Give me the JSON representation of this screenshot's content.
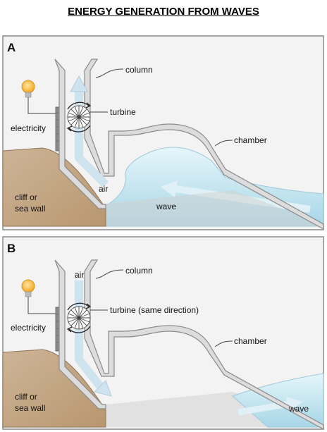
{
  "title": "ENERGY GENERATION FROM WAVES",
  "panel_a": {
    "letter": "A",
    "labels": {
      "column": "column",
      "turbine": "turbine",
      "electricity": "electricity",
      "chamber": "chamber",
      "air": "air",
      "wave": "wave",
      "cliff_line1": "cliff or",
      "cliff_line2": "sea wall"
    }
  },
  "panel_b": {
    "letter": "B",
    "labels": {
      "air": "air",
      "column": "column",
      "turbine": "turbine (same direction)",
      "electricity": "electricity",
      "chamber": "chamber",
      "wave": "wave",
      "cliff_line1": "cliff or",
      "cliff_line2": "sea wall"
    }
  },
  "colors": {
    "panel_bg": "#f2f2f2",
    "border": "#888888",
    "cliff": "#c4a98a",
    "wall": "#dadada",
    "wall_stroke": "#9a9a9a",
    "water": "#bfe3ee",
    "air_arrow": "#cfe6f2",
    "bulb": "#f7b733",
    "ground": "#cfcfcf"
  }
}
